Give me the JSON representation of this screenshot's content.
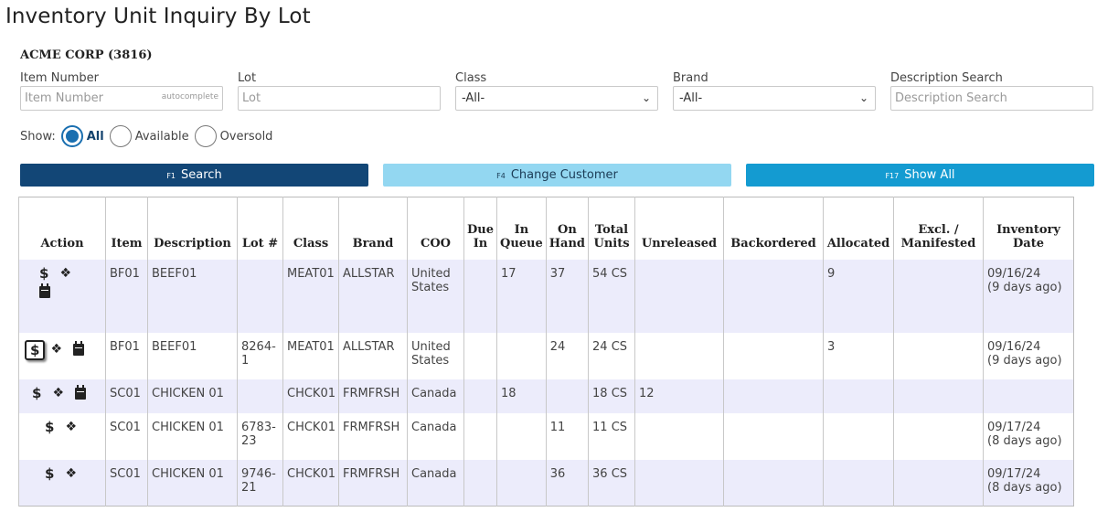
{
  "page": {
    "title": "Inventory Unit Inquiry By Lot",
    "customer": "ACME CORP (3816)"
  },
  "filters": {
    "item_number": {
      "label": "Item Number",
      "placeholder": "Item Number",
      "hint": "autocomplete"
    },
    "lot": {
      "label": "Lot",
      "placeholder": "Lot"
    },
    "class": {
      "label": "Class",
      "value": "-All-"
    },
    "brand": {
      "label": "Brand",
      "value": "-All-"
    },
    "description": {
      "label": "Description Search",
      "placeholder": "Description Search"
    }
  },
  "show": {
    "label": "Show:",
    "options": [
      "All",
      "Available",
      "Oversold"
    ],
    "selected": "All"
  },
  "buttons": {
    "search": {
      "key": "F1",
      "label": "Search"
    },
    "change_customer": {
      "key": "F4",
      "label": "Change Customer"
    },
    "show_all": {
      "key": "F17",
      "label": "Show All"
    }
  },
  "table": {
    "headers": [
      "Action",
      "Item",
      "Description",
      "Lot #",
      "Class",
      "Brand",
      "COO",
      "Due In",
      "In Queue",
      "On Hand",
      "Total Units",
      "Unreleased",
      "Backordered",
      "Allocated",
      "Excl. / Manifested",
      "Inventory Date"
    ],
    "rows": [
      {
        "actions": [
          "dollar-icon",
          "boxes-icon",
          "calendar-icon"
        ],
        "item": "BF01",
        "description": "BEEF01",
        "lot": "",
        "class": "MEAT01",
        "brand": "ALLSTAR",
        "coo": "United States",
        "due_in": "",
        "in_queue": "17",
        "on_hand": "37",
        "total_units": "54 CS",
        "unreleased": "",
        "backordered": "",
        "allocated": "9",
        "excl_manifested": "",
        "inventory_date": "09/16/24",
        "inventory_age": "(9 days ago)"
      },
      {
        "actions": [
          "dollar-icon",
          "boxes-icon",
          "calendar-icon"
        ],
        "item": "BF01",
        "description": "BEEF01",
        "lot": "8264-1",
        "class": "MEAT01",
        "brand": "ALLSTAR",
        "coo": "United States",
        "due_in": "",
        "in_queue": "",
        "on_hand": "24",
        "total_units": "24 CS",
        "unreleased": "",
        "backordered": "",
        "allocated": "3",
        "excl_manifested": "",
        "inventory_date": "09/16/24",
        "inventory_age": "(9 days ago)"
      },
      {
        "actions": [
          "dollar-icon",
          "boxes-icon",
          "calendar-icon"
        ],
        "item": "SC01",
        "description": "CHICKEN 01",
        "lot": "",
        "class": "CHCK01",
        "brand": "FRMFRSH",
        "coo": "Canada",
        "due_in": "",
        "in_queue": "18",
        "on_hand": "",
        "total_units": "18 CS",
        "unreleased": "12",
        "backordered": "",
        "allocated": "",
        "excl_manifested": "",
        "inventory_date": "",
        "inventory_age": ""
      },
      {
        "actions": [
          "dollar-icon",
          "boxes-icon"
        ],
        "item": "SC01",
        "description": "CHICKEN 01",
        "lot": "6783-23",
        "class": "CHCK01",
        "brand": "FRMFRSH",
        "coo": "Canada",
        "due_in": "",
        "in_queue": "",
        "on_hand": "11",
        "total_units": "11 CS",
        "unreleased": "",
        "backordered": "",
        "allocated": "",
        "excl_manifested": "",
        "inventory_date": "09/17/24",
        "inventory_age": "(8 days ago)"
      },
      {
        "actions": [
          "dollar-icon",
          "boxes-icon"
        ],
        "item": "SC01",
        "description": "CHICKEN 01",
        "lot": "9746-21",
        "class": "CHCK01",
        "brand": "FRMFRSH",
        "coo": "Canada",
        "due_in": "",
        "in_queue": "",
        "on_hand": "36",
        "total_units": "36 CS",
        "unreleased": "",
        "backordered": "",
        "allocated": "",
        "excl_manifested": "",
        "inventory_date": "09/17/24",
        "inventory_age": "(8 days ago)"
      }
    ]
  },
  "colors": {
    "primary": "#124676",
    "secondary": "#93d7f1",
    "accent": "#149bd1",
    "row_alt": "#ececfb"
  }
}
